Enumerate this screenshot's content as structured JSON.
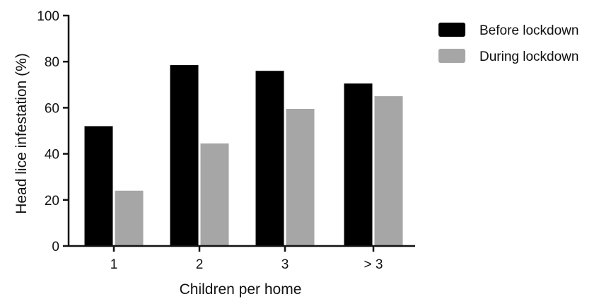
{
  "chart_data": {
    "type": "bar",
    "categories": [
      "1",
      "2",
      "3",
      "> 3"
    ],
    "series": [
      {
        "name": "Before lockdown",
        "values": [
          52,
          78.5,
          76,
          70.5
        ],
        "color": "#000000"
      },
      {
        "name": "During lockdown",
        "values": [
          24,
          44.5,
          59.5,
          65
        ],
        "color": "#a6a6a6"
      }
    ],
    "xlabel": "Children per home",
    "ylabel": "Head lice infestation (%)",
    "ylim": [
      0,
      100
    ],
    "yticks": [
      "0",
      "20",
      "40",
      "60",
      "80",
      "100"
    ],
    "grid": false,
    "legend_position": "top-right"
  }
}
